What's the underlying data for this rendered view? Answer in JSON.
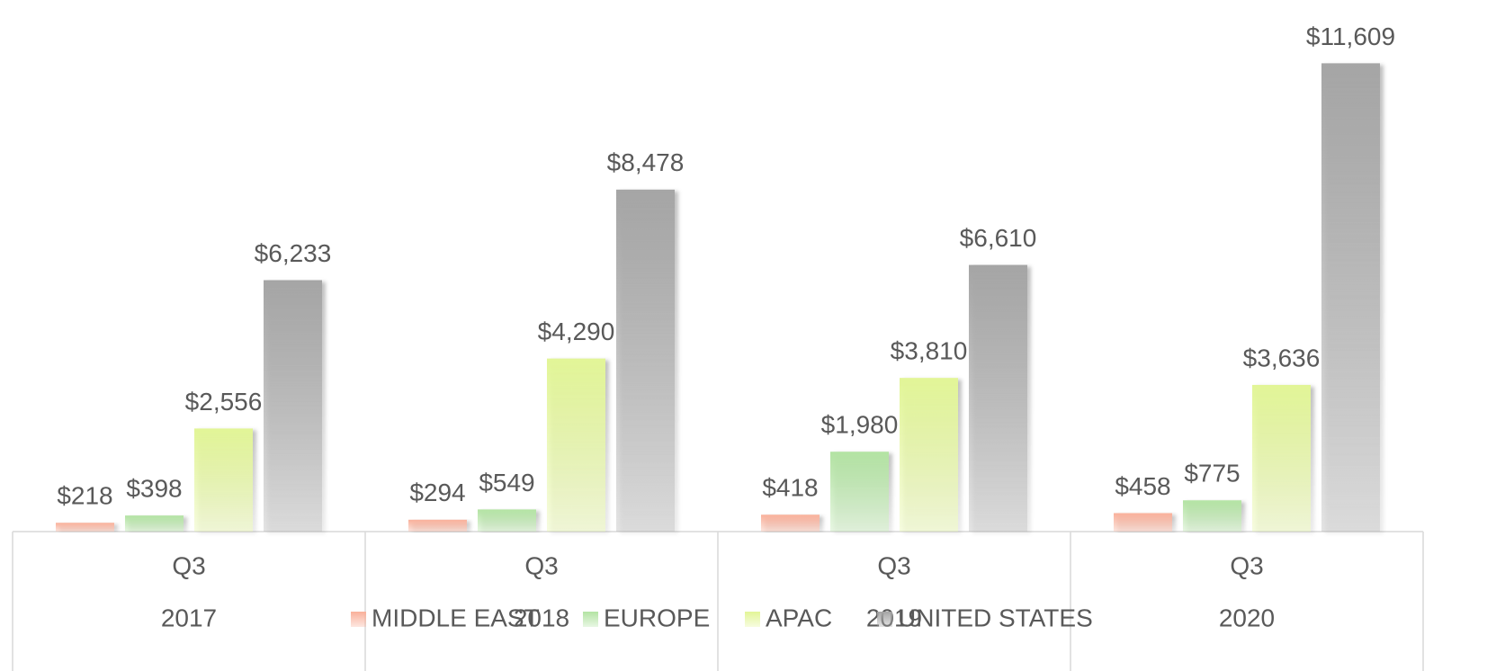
{
  "chart_data": {
    "type": "bar",
    "quarters": [
      "Q3",
      "Q3",
      "Q3",
      "Q3"
    ],
    "categories": [
      "2017",
      "2018",
      "2019",
      "2020"
    ],
    "series": [
      {
        "name": "MIDDLE EAST",
        "color": "#f9b09a",
        "values": [
          218,
          294,
          418,
          458
        ],
        "value_labels": [
          "$218",
          "$294",
          "$418",
          "$458"
        ]
      },
      {
        "name": "EUROPE",
        "color": "#b3e3a3",
        "values": [
          398,
          549,
          1980,
          775
        ],
        "value_labels": [
          "$398",
          "$549",
          "$1,980",
          "$775"
        ]
      },
      {
        "name": "APAC",
        "color": "#e2f597",
        "values": [
          2556,
          4290,
          3810,
          3636
        ],
        "value_labels": [
          "$2,556",
          "$4,290",
          "$3,810",
          "$3,636"
        ]
      },
      {
        "name": "UNITED STATES",
        "color": "#a5a5a5",
        "values": [
          6233,
          8478,
          6610,
          11609
        ],
        "value_labels": [
          "$6,233",
          "$8,478",
          "$6,610",
          "$11,609"
        ]
      }
    ],
    "ylim": [
      0,
      13000
    ],
    "legend": "bottom"
  }
}
